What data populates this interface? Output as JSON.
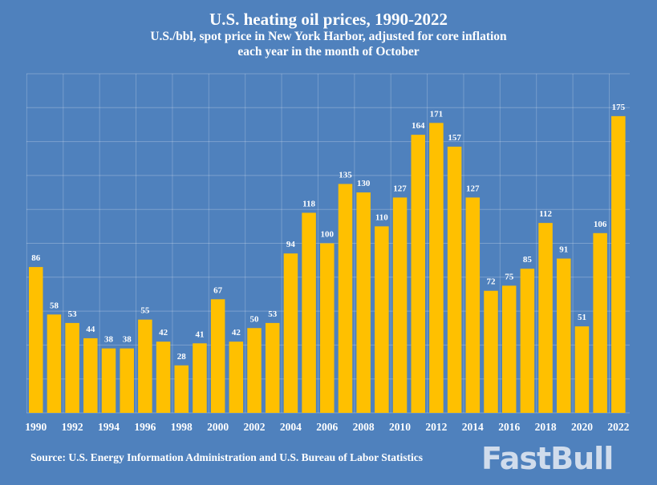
{
  "chart_data": {
    "type": "bar",
    "title": "U.S. heating oil prices, 1990-2022",
    "subtitle": [
      "U.S./bbl, spot price in New York Harbor, adjusted for core inflation",
      "each year in the month of  October"
    ],
    "categories": [
      "1990",
      "1991",
      "1992",
      "1993",
      "1994",
      "1995",
      "1996",
      "1997",
      "1998",
      "1999",
      "2000",
      "2001",
      "2002",
      "2003",
      "2004",
      "2005",
      "2006",
      "2007",
      "2008",
      "2009",
      "2010",
      "2011",
      "2012",
      "2013",
      "2014",
      "2015",
      "2016",
      "2017",
      "2018",
      "2019",
      "2020",
      "2021",
      "2022"
    ],
    "values": [
      86,
      58,
      53,
      44,
      38,
      38,
      55,
      42,
      28,
      41,
      67,
      42,
      50,
      53,
      94,
      118,
      100,
      135,
      130,
      110,
      127,
      164,
      171,
      157,
      127,
      72,
      75,
      85,
      112,
      91,
      51,
      106,
      175
    ],
    "xtick_labels": [
      "1990",
      "1992",
      "1994",
      "1996",
      "1998",
      "2000",
      "2002",
      "2004",
      "2006",
      "2008",
      "2010",
      "2012",
      "2014",
      "2016",
      "2018",
      "2020",
      "2022"
    ],
    "xlabel": "",
    "ylabel": "",
    "ylim": [
      0,
      200
    ],
    "grid": true,
    "data_labels": true,
    "colors": {
      "background": "#4f81bd",
      "bar": "#ffc000",
      "text": "#ffffff"
    }
  },
  "source": "Source: U.S. Energy Information Administration and U.S. Bureau of Labor Statistics",
  "watermark": "FastBull"
}
